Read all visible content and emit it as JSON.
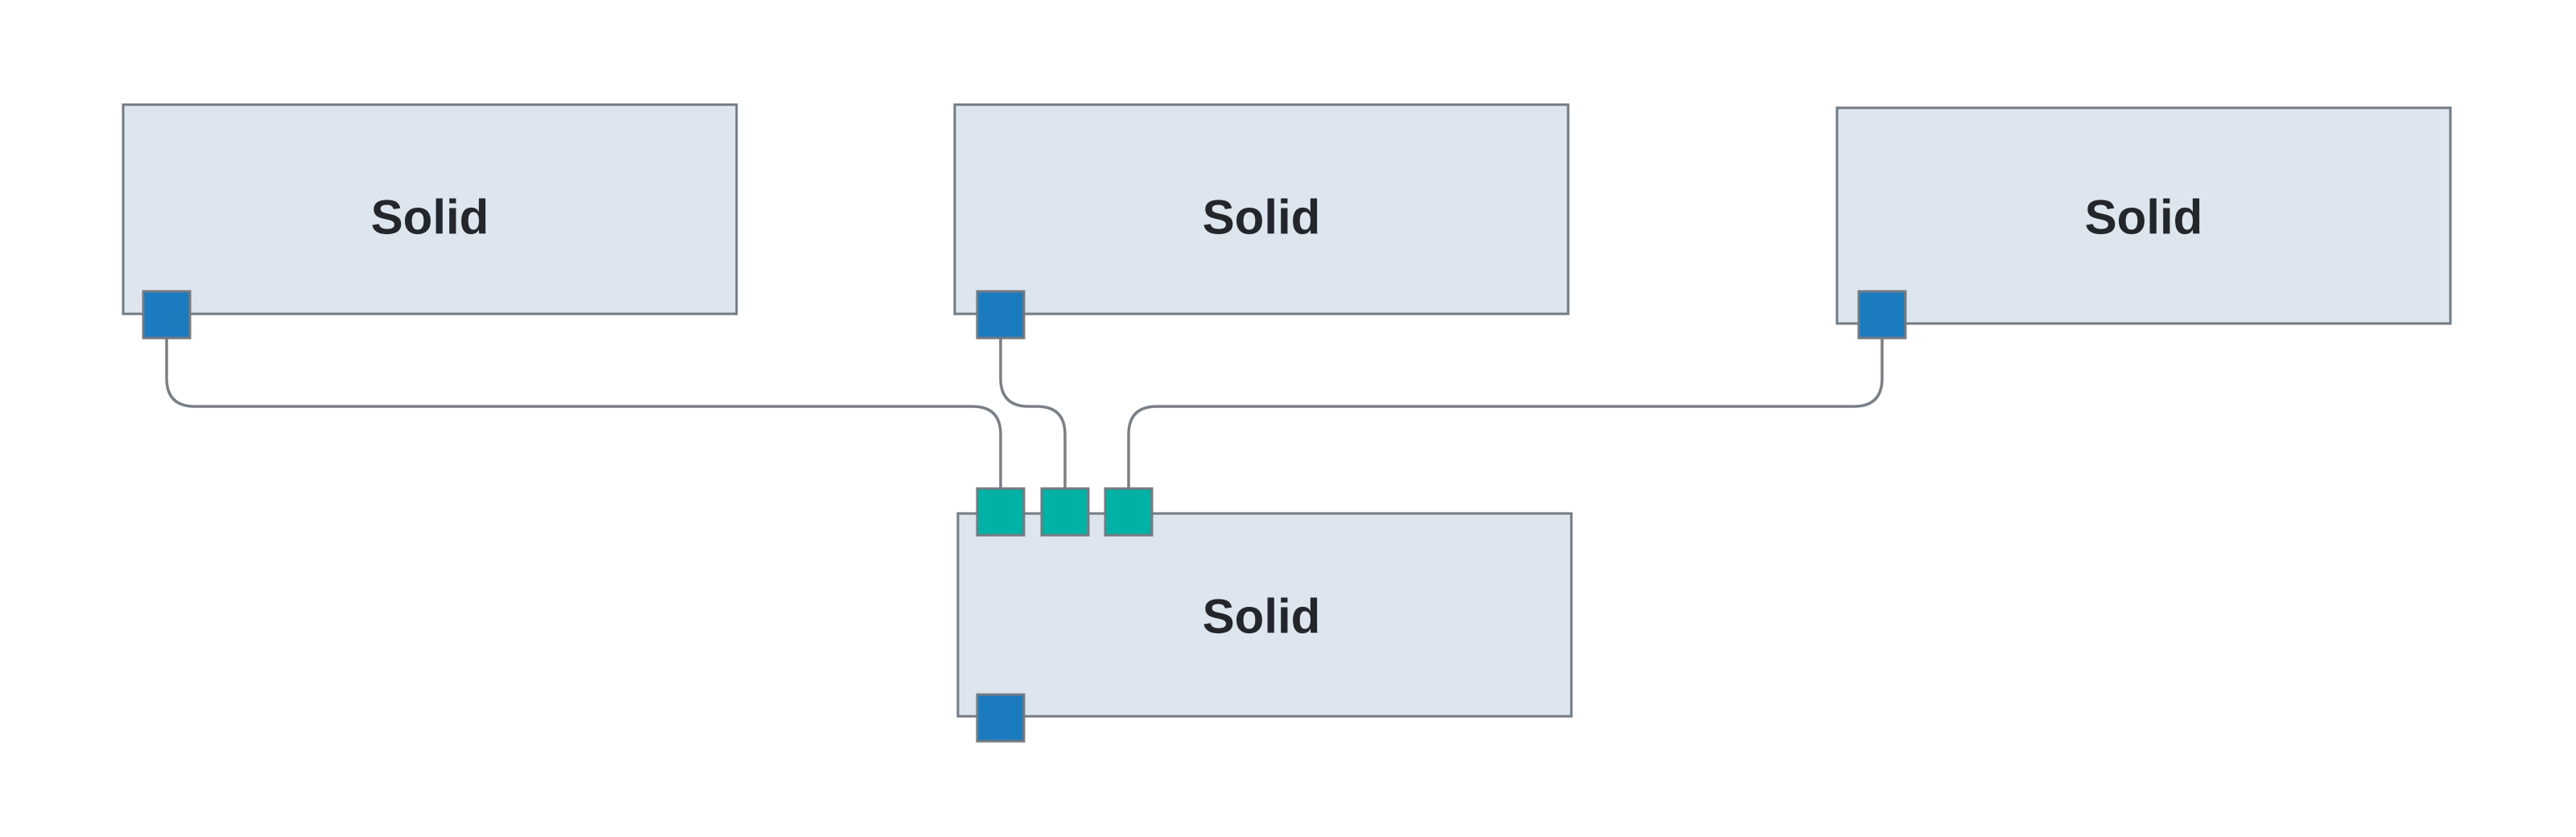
{
  "diagram": {
    "nodes": [
      {
        "id": "source-1",
        "label": "Solid"
      },
      {
        "id": "source-2",
        "label": "Solid"
      },
      {
        "id": "source-3",
        "label": "Solid"
      },
      {
        "id": "target",
        "label": "Solid"
      }
    ],
    "edges": [
      {
        "from": "source-1",
        "to": "target",
        "target_port": 1
      },
      {
        "from": "source-2",
        "to": "target",
        "target_port": 2
      },
      {
        "from": "source-3",
        "to": "target",
        "target_port": 3
      }
    ],
    "colors": {
      "node_fill": "#dde6ef",
      "node_stroke": "#747a82",
      "output_port": "#1b7bbf",
      "input_port": "#00b2a6",
      "wire": "#7a7f86",
      "label": "#23272c"
    }
  }
}
